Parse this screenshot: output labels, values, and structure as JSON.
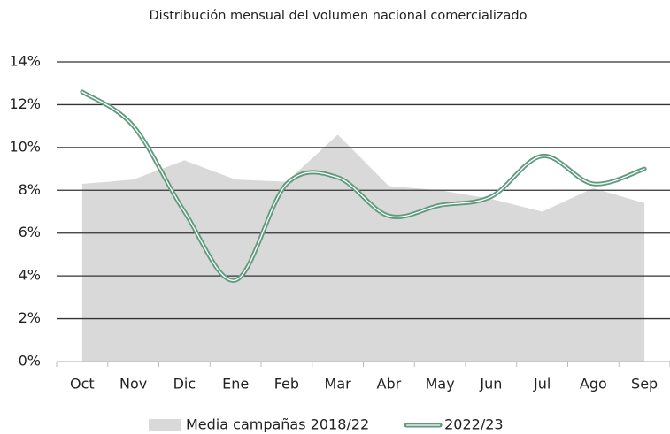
{
  "chart_data": {
    "type": "line",
    "title": "Distribución  mensual del volumen nacional comercializado",
    "categories": [
      "Oct",
      "Nov",
      "Dic",
      "Ene",
      "Feb",
      "Mar",
      "Abr",
      "May",
      "Jun",
      "Jul",
      "Ago",
      "Sep"
    ],
    "series": [
      {
        "name": "Media campañas 2018/22",
        "kind": "area",
        "color": "#d9d9d9",
        "values": [
          8.3,
          8.5,
          9.4,
          8.5,
          8.4,
          10.6,
          8.2,
          8.0,
          7.6,
          7.0,
          8.1,
          7.4
        ]
      },
      {
        "name": "2022/23",
        "kind": "line",
        "smooth": true,
        "color": "#5f9a7e",
        "values": [
          12.6,
          11.0,
          7.0,
          3.8,
          8.3,
          8.6,
          6.8,
          7.3,
          7.7,
          9.6,
          8.3,
          9.0
        ]
      }
    ],
    "ylim": [
      0,
      14
    ],
    "yticks": [
      {
        "value": 0,
        "label": "0%"
      },
      {
        "value": 2,
        "label": "2%"
      },
      {
        "value": 4,
        "label": "4%"
      },
      {
        "value": 6,
        "label": "6%"
      },
      {
        "value": 8,
        "label": "8%"
      },
      {
        "value": 10,
        "label": "10%"
      },
      {
        "value": 12,
        "label": "12%"
      },
      {
        "value": 14,
        "label": "14%"
      }
    ],
    "grid": true,
    "legend": "bottom"
  }
}
